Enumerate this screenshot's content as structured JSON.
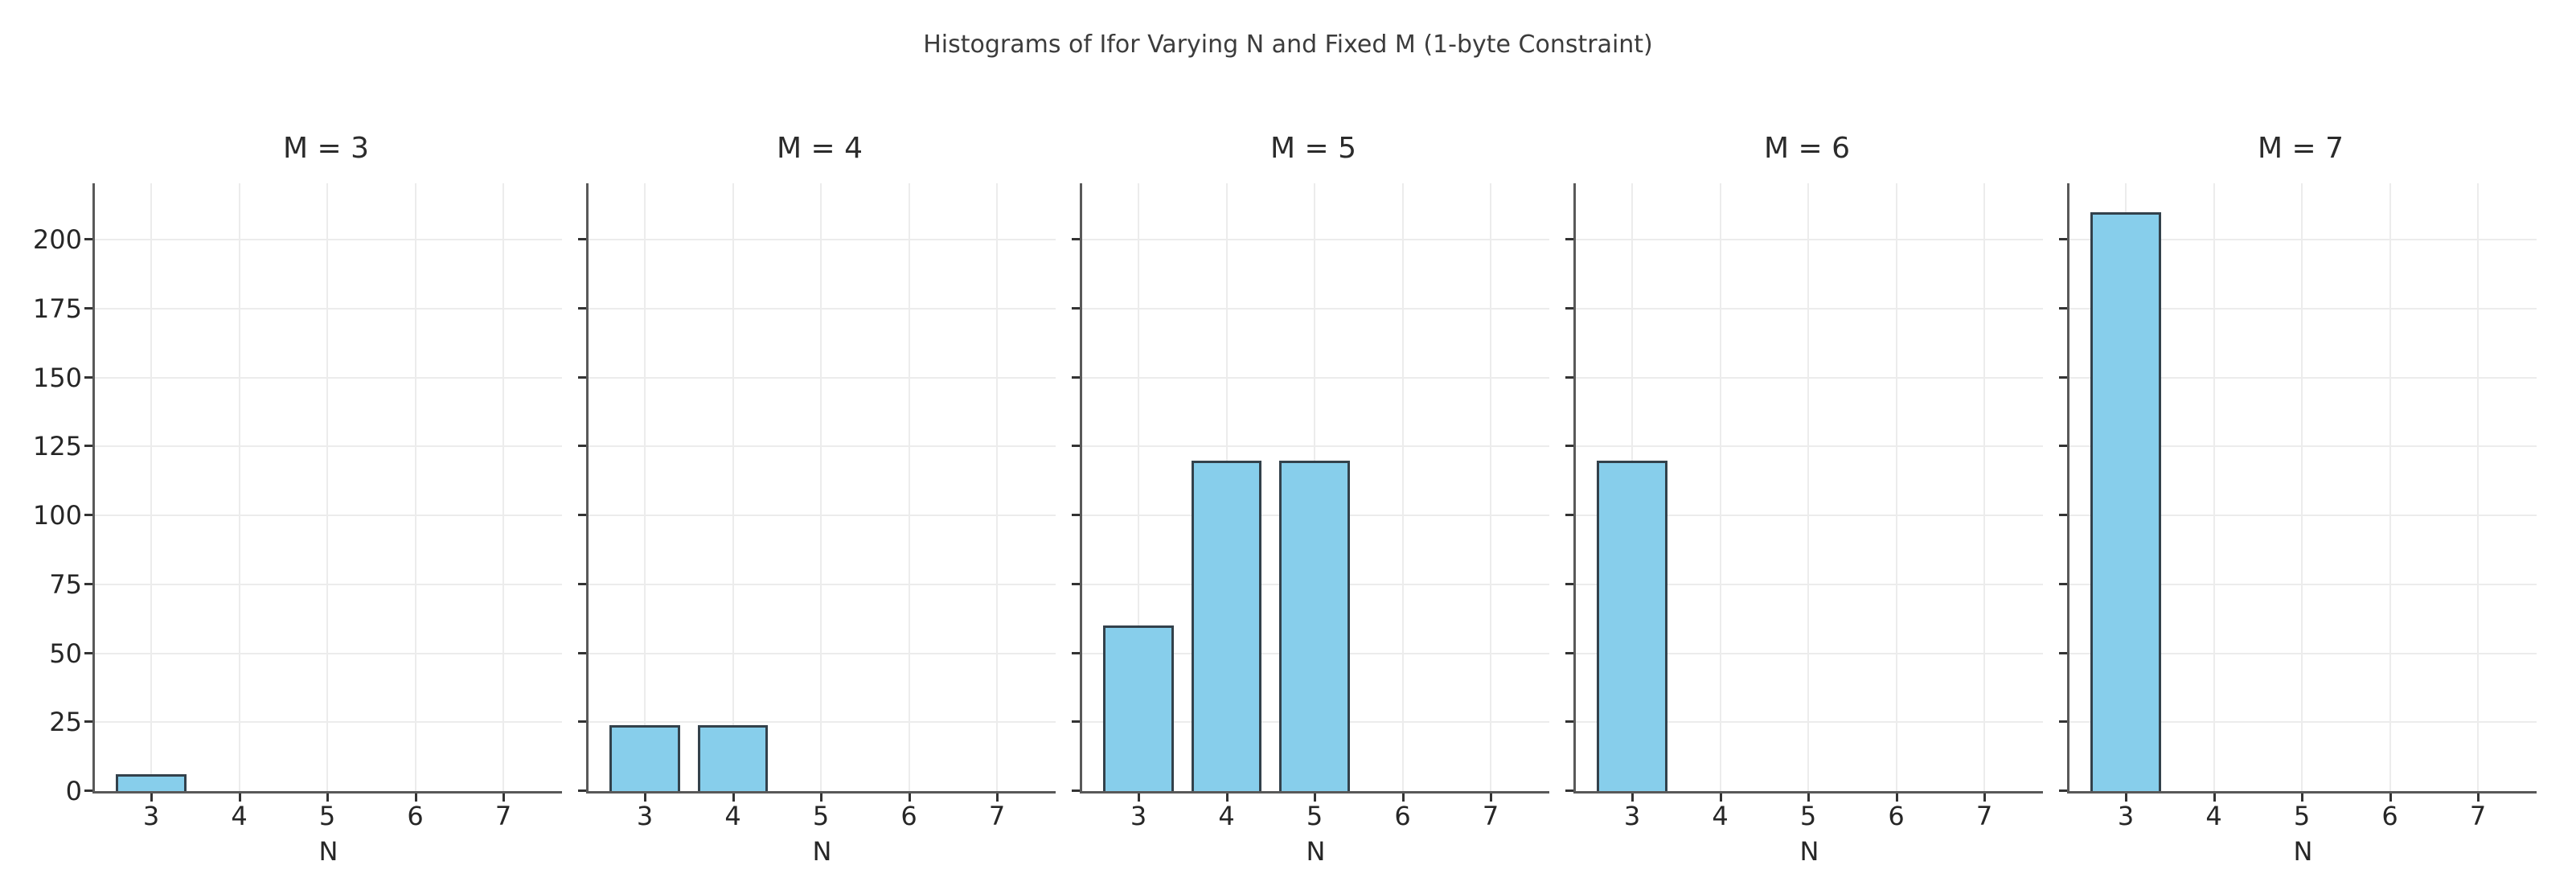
{
  "figure": {
    "background": "#ffffff",
    "suptitle": "Histograms of Ifor Varying N and Fixed M (1-byte Constraint)"
  },
  "chart_data": {
    "type": "bar",
    "title": "Histograms of Ifor Varying N and Fixed M (1-byte Constraint)",
    "xlabel": "N",
    "ylabel": "",
    "categories": [
      3,
      4,
      5,
      6,
      7
    ],
    "xticks": [
      "3",
      "4",
      "5",
      "6",
      "7"
    ],
    "yticks": [
      0,
      25,
      50,
      75,
      100,
      125,
      150,
      175,
      200
    ],
    "ylim": [
      0,
      220.5
    ],
    "xlim": [
      2.36,
      7.64
    ],
    "grid": true,
    "legend_position": "none",
    "bar_width_units": 0.8,
    "panels": [
      {
        "title": "M = 3",
        "values": [
          6,
          0,
          0,
          0,
          0
        ]
      },
      {
        "title": "M = 4",
        "values": [
          24,
          24,
          0,
          0,
          0
        ]
      },
      {
        "title": "M = 5",
        "values": [
          60,
          120,
          120,
          0,
          0
        ]
      },
      {
        "title": "M = 6",
        "values": [
          120,
          0,
          0,
          0,
          0
        ]
      },
      {
        "title": "M = 7",
        "values": [
          210,
          0,
          0,
          0,
          0
        ]
      }
    ],
    "colors": {
      "bar_fill": "#87CEEB",
      "bar_edge": "#33414B",
      "gridline": "#ECECEC",
      "spine": "#595959",
      "tick_mark": "#333333",
      "tick_text": "#262626",
      "title_text": "#2B2B2B",
      "suptitle_text": "#3C3C3C"
    }
  }
}
